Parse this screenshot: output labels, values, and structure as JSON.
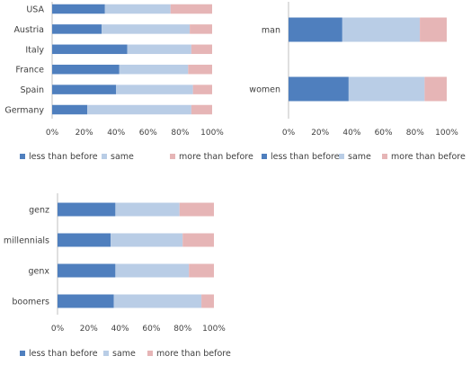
{
  "colors": {
    "less": "#4f7fbe",
    "same": "#b9cde6",
    "more": "#e6b5b6"
  },
  "legend": [
    "less than before",
    "same",
    "more than before"
  ],
  "chart_data": [
    {
      "type": "bar",
      "stacked": true,
      "orientation": "horizontal",
      "categories": [
        "USA",
        "Austria",
        "Italy",
        "France",
        "Spain",
        "Germany"
      ],
      "series": [
        {
          "name": "less than before",
          "values": [
            33,
            31,
            47,
            42,
            40,
            22
          ]
        },
        {
          "name": "same",
          "values": [
            41,
            55,
            40,
            43,
            48,
            65
          ]
        },
        {
          "name": "more than before",
          "values": [
            26,
            14,
            13,
            15,
            12,
            13
          ]
        }
      ],
      "xticks": [
        "0%",
        "20%",
        "40%",
        "60%",
        "80%",
        "100%"
      ],
      "xlim": [
        0,
        100
      ],
      "legend_position": "bottom"
    },
    {
      "type": "bar",
      "stacked": true,
      "orientation": "horizontal",
      "categories": [
        "man",
        "women"
      ],
      "series": [
        {
          "name": "less than before",
          "values": [
            34,
            38
          ]
        },
        {
          "name": "same",
          "values": [
            49,
            48
          ]
        },
        {
          "name": "more than before",
          "values": [
            17,
            14
          ]
        }
      ],
      "xticks": [
        "0%",
        "20%",
        "40%",
        "60%",
        "80%",
        "100%"
      ],
      "xlim": [
        0,
        100
      ],
      "legend_position": "bottom"
    },
    {
      "type": "bar",
      "stacked": true,
      "orientation": "horizontal",
      "categories": [
        "genz",
        "millennials",
        "genx",
        "boomers"
      ],
      "series": [
        {
          "name": "less than before",
          "values": [
            37,
            34,
            37,
            36
          ]
        },
        {
          "name": "same",
          "values": [
            41,
            46,
            47,
            56
          ]
        },
        {
          "name": "more than before",
          "values": [
            22,
            20,
            16,
            8
          ]
        }
      ],
      "xticks": [
        "0%",
        "20%",
        "40%",
        "60%",
        "80%",
        "100%"
      ],
      "xlim": [
        0,
        100
      ],
      "legend_position": "bottom"
    }
  ]
}
